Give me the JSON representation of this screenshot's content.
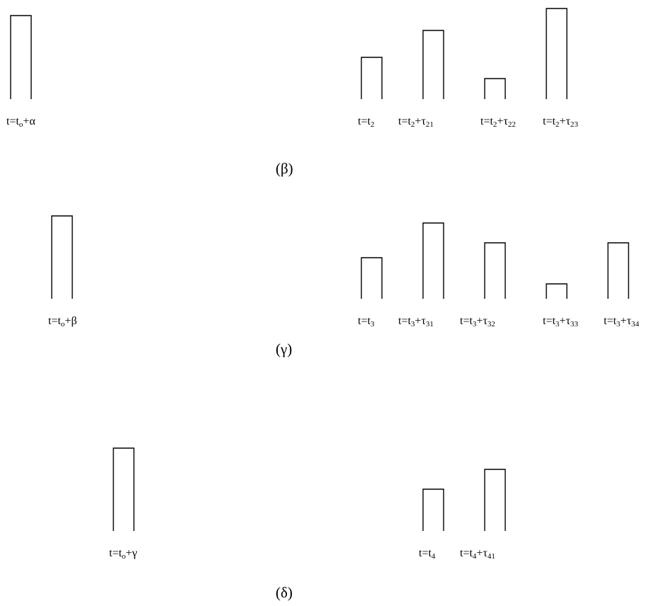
{
  "panels": [
    {
      "id": "beta",
      "caption": "(β)",
      "pulses": [
        {
          "label": [
            "t=t",
            {
              "sub": "o"
            },
            "+α"
          ]
        },
        {
          "label": [
            "t=t",
            {
              "sub": "2"
            }
          ]
        },
        {
          "label": [
            "t=t",
            {
              "sub": "2"
            },
            "+τ",
            {
              "sub": "21"
            }
          ]
        },
        {
          "label": [
            "t=t",
            {
              "sub": "2"
            },
            "+τ",
            {
              "sub": "22"
            }
          ]
        },
        {
          "label": [
            "t=t",
            {
              "sub": "2"
            },
            "+τ",
            {
              "sub": "23"
            }
          ]
        }
      ]
    },
    {
      "id": "gamma",
      "caption": "(γ)",
      "pulses": [
        {
          "label": [
            "t=t",
            {
              "sub": "o"
            },
            "+β"
          ]
        },
        {
          "label": [
            "t=t",
            {
              "sub": "3"
            }
          ]
        },
        {
          "label": [
            "t=t",
            {
              "sub": "3"
            },
            "+τ",
            {
              "sub": "31"
            }
          ]
        },
        {
          "label": [
            "t=t",
            {
              "sub": "3"
            },
            "+τ",
            {
              "sub": "32"
            }
          ]
        },
        {
          "label": [
            "t=t",
            {
              "sub": "3"
            },
            "+τ",
            {
              "sub": "33"
            }
          ]
        },
        {
          "label": [
            "t=t",
            {
              "sub": "3"
            },
            "+τ",
            {
              "sub": "34"
            }
          ]
        }
      ]
    },
    {
      "id": "delta",
      "caption": "(δ)",
      "pulses": [
        {
          "label": [
            "t=t",
            {
              "sub": "o"
            },
            "+γ"
          ]
        },
        {
          "label": [
            "t=t",
            {
              "sub": "4"
            }
          ]
        },
        {
          "label": [
            "t=t",
            {
              "sub": "4"
            },
            "+τ",
            {
              "sub": "41"
            }
          ]
        }
      ]
    }
  ]
}
